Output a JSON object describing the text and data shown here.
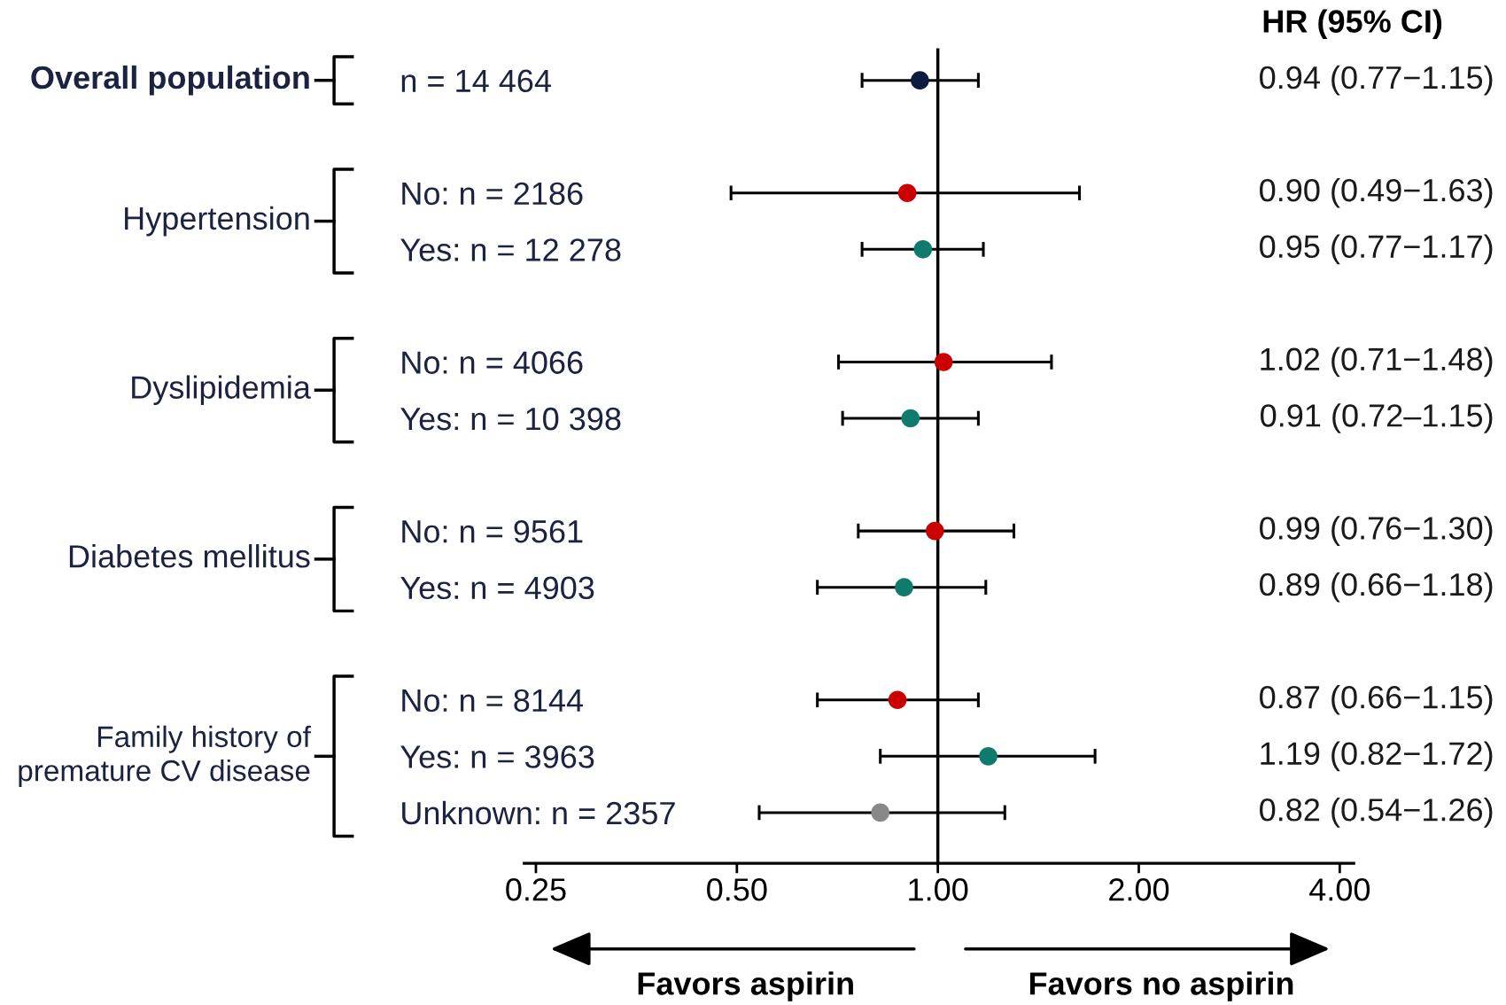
{
  "chart_data": {
    "type": "scatter",
    "orientation": "horizontal",
    "log": "x",
    "categories": [
      "n = 14 464",
      null,
      "No: n = 2186",
      "Yes: n = 12 278",
      null,
      "No: n = 4066",
      "Yes: n = 10 398",
      null,
      "No: n = 9561",
      "Yes: n = 4903",
      null,
      "No: n = 8144",
      "Yes: n = 3963",
      "Unknown: n = 2357"
    ],
    "values": [
      0.94,
      null,
      0.9,
      0.95,
      null,
      1.02,
      0.91,
      null,
      0.99,
      0.89,
      null,
      0.87,
      1.19,
      0.82
    ],
    "errors": [
      [
        0.77,
        1.15
      ],
      null,
      [
        0.49,
        1.63
      ],
      [
        0.77,
        1.17
      ],
      null,
      [
        0.71,
        1.48
      ],
      [
        0.72,
        1.15
      ],
      null,
      [
        0.76,
        1.3
      ],
      [
        0.66,
        1.18
      ],
      null,
      [
        0.66,
        1.15
      ],
      [
        0.82,
        1.72
      ],
      [
        0.54,
        1.26
      ]
    ],
    "colors": [
      "#0d1b3e",
      null,
      "#cc0000",
      "#0f7b6c",
      null,
      "#cc0000",
      "#0f7b6c",
      null,
      "#cc0000",
      "#0f7b6c",
      null,
      "#cc0000",
      "#0f7b6c",
      "#888888"
    ],
    "value_labels": [
      "0.94 (0.77−1.15)",
      null,
      "0.90 (0.49−1.63)",
      "0.95 (0.77−1.17)",
      null,
      "1.02 (0.71−1.48)",
      "0.91 (0.72–1.15)",
      null,
      "0.99 (0.76−1.30)",
      "0.89 (0.66−1.18)",
      null,
      "0.87 (0.66−1.15)",
      "1.19 (0.82−1.72)",
      "0.82 (0.54−1.26)"
    ],
    "xlim": [
      0.24,
      4.2
    ],
    "xticks": [
      {
        "value": 0.25,
        "label": "0.25"
      },
      {
        "value": 0.5,
        "label": "0.50"
      },
      {
        "value": 1,
        "label": "1.00"
      },
      {
        "value": 2,
        "label": "2.00"
      },
      {
        "value": 4,
        "label": "4.00"
      }
    ],
    "ref_lines": [
      {
        "axis": "x",
        "value": 1,
        "color": "#000000"
      }
    ],
    "marker": "circle",
    "grid": false,
    "annotations": [
      "Overall population",
      "Hypertension",
      "Dyslipidemia",
      "Diabetes mellitus",
      "Family history of\npremature CV disease",
      "HR (95% CI)",
      "Favors aspirin",
      "Favors no aspirin"
    ]
  }
}
